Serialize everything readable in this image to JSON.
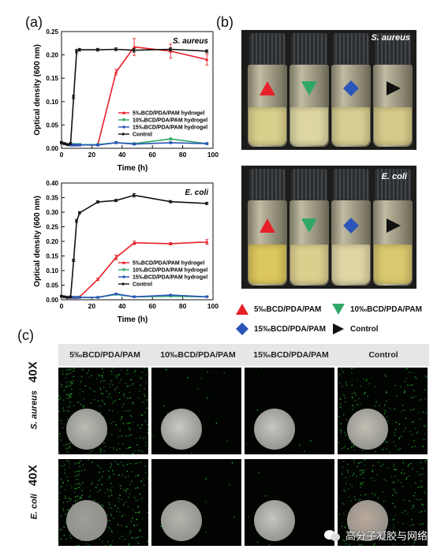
{
  "panels": {
    "a": "(a)",
    "b": "(b)",
    "c": "(c)"
  },
  "chart_top": {
    "organism": "S. aureus",
    "ylabel": "Optical density (600 nm)",
    "xlabel": "Time (h)",
    "yticks": [
      "0.00",
      "0.05",
      "0.10",
      "0.15",
      "0.20",
      "0.25"
    ],
    "xticks": [
      "0",
      "20",
      "40",
      "60",
      "80",
      "100"
    ]
  },
  "chart_bottom": {
    "organism": "E. coli",
    "ylabel": "Optical density (600 nm)",
    "xlabel": "Time (h)",
    "yticks": [
      "0.00",
      "0.05",
      "0.10",
      "0.15",
      "0.20",
      "0.25",
      "0.30",
      "0.35",
      "0.40"
    ],
    "xticks": [
      "0",
      "20",
      "40",
      "60",
      "80",
      "100"
    ]
  },
  "chart_data": [
    {
      "type": "line",
      "title": "S. aureus",
      "xlabel": "Time (h)",
      "ylabel": "Optical density (600 nm)",
      "xlim": [
        0,
        100
      ],
      "ylim": [
        0,
        0.25
      ],
      "legend_position": "center-right",
      "series": [
        {
          "name": "5‰BCD/PDA/PAM hydrogel",
          "color": "#e8202a",
          "marker": "triangle-up",
          "x": [
            0,
            2,
            4,
            6,
            8,
            10,
            12,
            24,
            36,
            48,
            72,
            96
          ],
          "y": [
            0.012,
            0.01,
            0.008,
            0.007,
            0.007,
            0.007,
            0.008,
            0.008,
            0.163,
            0.217,
            0.208,
            0.19
          ],
          "err": [
            0.003,
            0.002,
            0.002,
            0.002,
            0.002,
            0.002,
            0.002,
            0.002,
            0.006,
            0.018,
            0.015,
            0.012
          ]
        },
        {
          "name": "10‰BCD/PDA/PAM hydrogel",
          "color": "#2fa866",
          "marker": "triangle-down",
          "x": [
            0,
            2,
            4,
            6,
            8,
            10,
            12,
            24,
            36,
            48,
            72,
            96
          ],
          "y": [
            0.012,
            0.01,
            0.008,
            0.008,
            0.008,
            0.008,
            0.008,
            0.008,
            0.012,
            0.01,
            0.02,
            0.01
          ],
          "err": [
            0.002,
            0.002,
            0.002,
            0.002,
            0.002,
            0.002,
            0.002,
            0.002,
            0.002,
            0.002,
            0.002,
            0.002
          ]
        },
        {
          "name": "15‰BCD/PDA/PAM hydrogel",
          "color": "#2b55b8",
          "marker": "diamond",
          "x": [
            0,
            2,
            4,
            6,
            8,
            10,
            12,
            24,
            36,
            48,
            72,
            96
          ],
          "y": [
            0.012,
            0.01,
            0.008,
            0.007,
            0.007,
            0.007,
            0.007,
            0.007,
            0.012,
            0.009,
            0.012,
            0.01
          ],
          "err": [
            0.002,
            0.002,
            0.002,
            0.002,
            0.002,
            0.002,
            0.002,
            0.002,
            0.002,
            0.002,
            0.002,
            0.002
          ]
        },
        {
          "name": "Control",
          "color": "#111111",
          "marker": "triangle-right",
          "x": [
            0,
            2,
            4,
            6,
            8,
            10,
            12,
            24,
            36,
            48,
            72,
            96
          ],
          "y": [
            0.012,
            0.01,
            0.008,
            0.01,
            0.11,
            0.208,
            0.211,
            0.211,
            0.212,
            0.21,
            0.212,
            0.208
          ],
          "err": [
            0.002,
            0.002,
            0.002,
            0.002,
            0.004,
            0.004,
            0.003,
            0.003,
            0.003,
            0.004,
            0.003,
            0.003
          ]
        }
      ]
    },
    {
      "type": "line",
      "title": "E. coli",
      "xlabel": "Time (h)",
      "ylabel": "Optical density (600 nm)",
      "xlim": [
        0,
        100
      ],
      "ylim": [
        0,
        0.4
      ],
      "legend_position": "center-right",
      "series": [
        {
          "name": "5‰BCD/PDA/PAM hydrogel",
          "color": "#e8202a",
          "marker": "triangle-up",
          "x": [
            0,
            2,
            4,
            6,
            8,
            10,
            12,
            24,
            36,
            48,
            72,
            96
          ],
          "y": [
            0.012,
            0.01,
            0.008,
            0.008,
            0.008,
            0.008,
            0.01,
            0.07,
            0.145,
            0.195,
            0.192,
            0.198
          ],
          "err": [
            0.002,
            0.002,
            0.002,
            0.002,
            0.002,
            0.002,
            0.002,
            0.004,
            0.008,
            0.006,
            0.004,
            0.008
          ]
        },
        {
          "name": "10‰BCD/PDA/PAM hydrogel",
          "color": "#2fa866",
          "marker": "triangle-down",
          "x": [
            0,
            2,
            4,
            6,
            8,
            10,
            12,
            24,
            36,
            48,
            72,
            96
          ],
          "y": [
            0.012,
            0.01,
            0.008,
            0.008,
            0.008,
            0.008,
            0.008,
            0.008,
            0.018,
            0.01,
            0.012,
            0.01
          ],
          "err": [
            0.002,
            0.002,
            0.002,
            0.002,
            0.002,
            0.002,
            0.002,
            0.002,
            0.002,
            0.002,
            0.002,
            0.002
          ]
        },
        {
          "name": "15‰BCD/PDA/PAM hydrogel",
          "color": "#2b55b8",
          "marker": "diamond",
          "x": [
            0,
            2,
            4,
            6,
            8,
            10,
            12,
            24,
            36,
            48,
            72,
            96
          ],
          "y": [
            0.012,
            0.01,
            0.008,
            0.008,
            0.008,
            0.008,
            0.008,
            0.008,
            0.02,
            0.01,
            0.016,
            0.01
          ],
          "err": [
            0.002,
            0.002,
            0.002,
            0.002,
            0.002,
            0.002,
            0.002,
            0.002,
            0.002,
            0.002,
            0.002,
            0.002
          ]
        },
        {
          "name": "Control",
          "color": "#111111",
          "marker": "triangle-right",
          "x": [
            0,
            2,
            4,
            6,
            8,
            10,
            12,
            24,
            36,
            48,
            72,
            96
          ],
          "y": [
            0.012,
            0.01,
            0.008,
            0.01,
            0.135,
            0.27,
            0.298,
            0.335,
            0.34,
            0.358,
            0.336,
            0.33
          ],
          "err": [
            0.002,
            0.002,
            0.002,
            0.002,
            0.004,
            0.005,
            0.004,
            0.004,
            0.004,
            0.006,
            0.004,
            0.004
          ]
        }
      ]
    }
  ],
  "photos_b": [
    {
      "organism": "S. aureus",
      "liquid": [
        "#d9cf8c",
        "#ddd6a3",
        "#d7cf91",
        "#d6c98a"
      ]
    },
    {
      "organism": "E. coli",
      "liquid": [
        "#dcc65e",
        "#dccf8e",
        "#dfd6a5",
        "#d9c96e"
      ]
    }
  ],
  "legend_b": [
    {
      "label": "5‰BCD/PDA/PAM",
      "color": "#e8202a",
      "icon": "triangle-up-icon"
    },
    {
      "label": "10‰BCD/PDA/PAM",
      "color": "#2fa866",
      "icon": "triangle-down-icon"
    },
    {
      "label": "15‰BCD/PDA/PAM",
      "color": "#2b55b8",
      "icon": "diamond-icon"
    },
    {
      "label": "Control",
      "color": "#111111",
      "icon": "triangle-right-icon"
    }
  ],
  "panel_c": {
    "columns": [
      "5‰BCD/PDA/PAM",
      "10‰BCD/PDA/PAM",
      "15‰BCD/PDA/PAM",
      "Control"
    ],
    "rows": [
      {
        "organism": "S. aureus",
        "magnification": "40X"
      },
      {
        "organism": "E. coli",
        "magnification": "40X"
      }
    ]
  },
  "watermark": "高分子凝胶与网络"
}
